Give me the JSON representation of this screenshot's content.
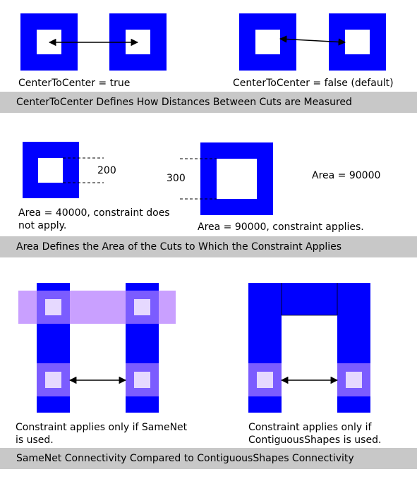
{
  "section1": {
    "caption_left": "CenterToCenter = true",
    "caption_right": "CenterToCenter = false (default)",
    "banner": "CenterToCenter Defines How Distances Between Cuts are Measured"
  },
  "section2": {
    "dim_left": "200",
    "dim_right": "300",
    "area_right": "Area = 90000",
    "caption_left": "Area = 40000, constraint does not apply.",
    "caption_right": "Area = 90000, constraint applies.",
    "banner": "Area Defines the Area of the Cuts to Which the Constraint Applies"
  },
  "section3": {
    "caption_left": "Constraint applies only if SameNet is used.",
    "caption_right": "Constraint applies only if ContiguousShapes is used.",
    "banner": "SameNet Connectivity Compared to ContiguousShapes Connectivity"
  },
  "colors": {
    "blue": "#0000ff",
    "light_purple": "#c9a0ff",
    "mid_purple": "#7b5cff",
    "pale_purple": "#e6d9ff",
    "banner_gray": "#c8c8c8"
  }
}
